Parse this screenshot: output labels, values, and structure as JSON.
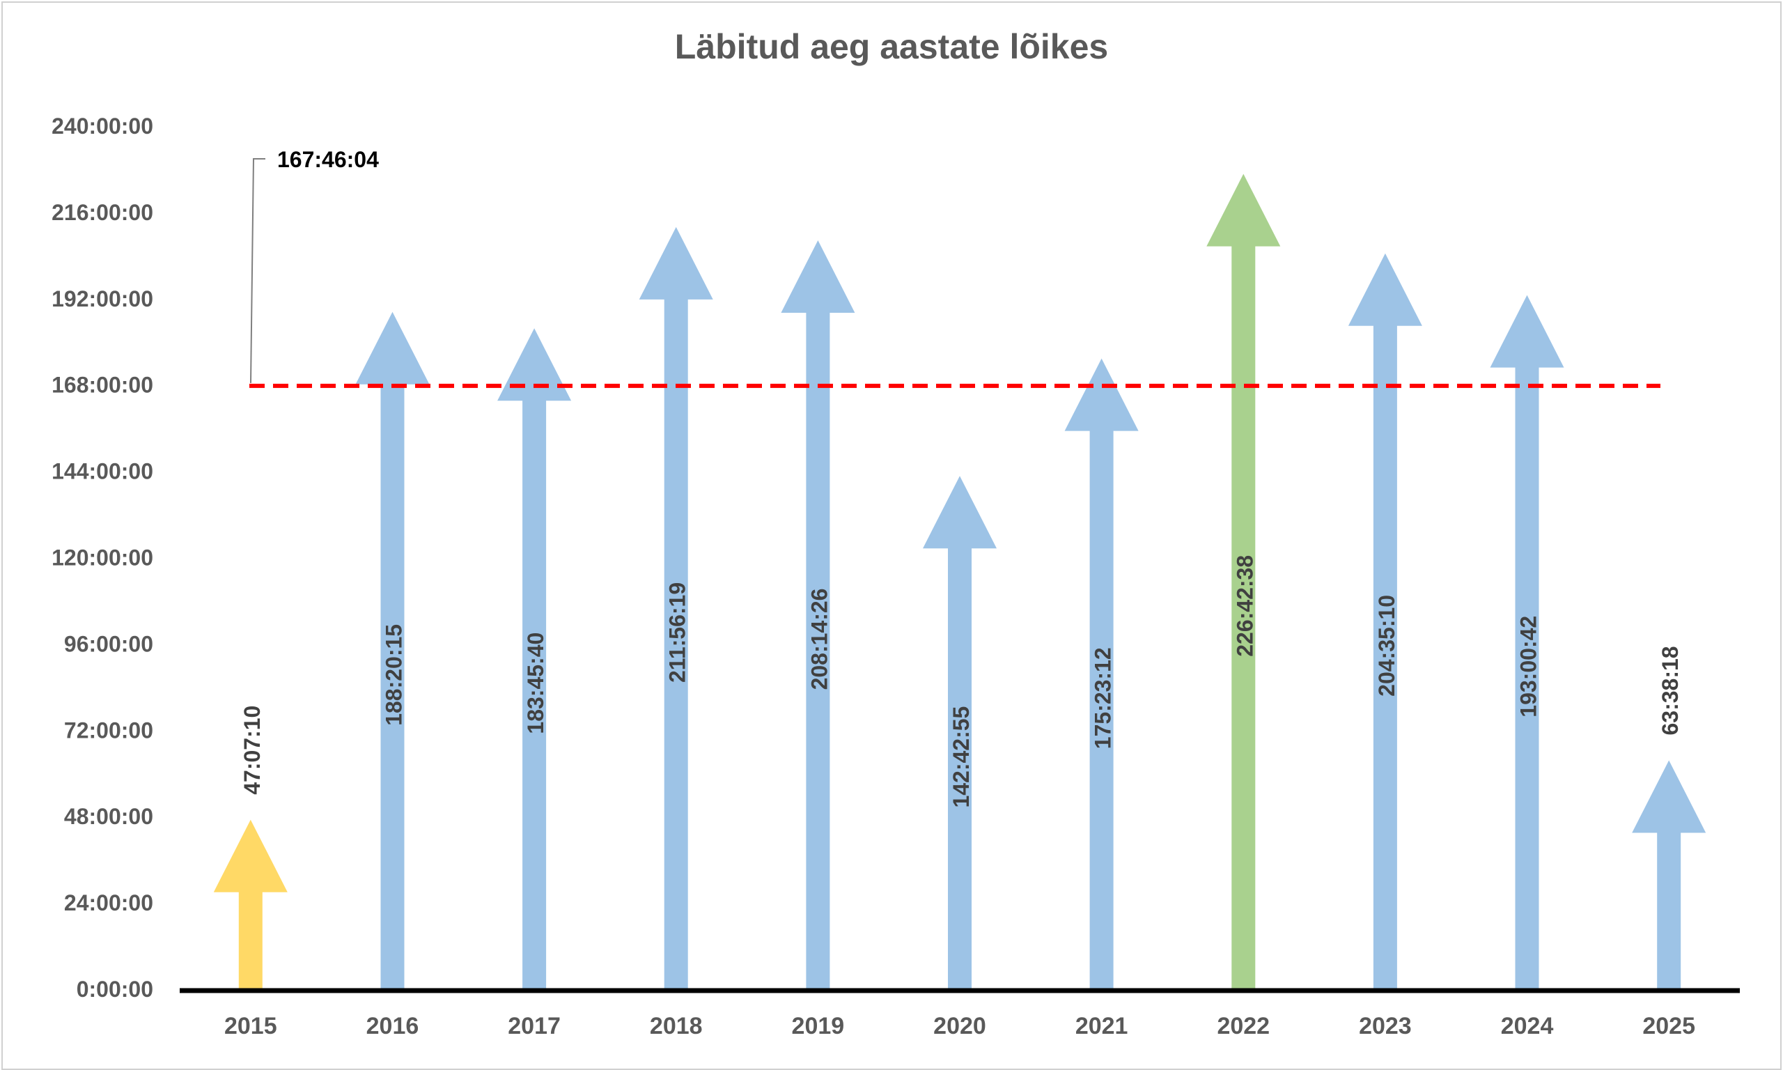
{
  "chart_data": {
    "type": "bar",
    "title": "Läbitud aeg aastate lõikes",
    "xlabel": "",
    "ylabel": "",
    "y_unit": "hours",
    "ylim": [
      0,
      240
    ],
    "y_ticks": [
      0,
      24,
      48,
      72,
      96,
      120,
      144,
      168,
      192,
      216,
      240
    ],
    "y_tick_labels": [
      "0:00:00",
      "24:00:00",
      "48:00:00",
      "72:00:00",
      "96:00:00",
      "120:00:00",
      "144:00:00",
      "168:00:00",
      "192:00:00",
      "216:00:00",
      "240:00:00"
    ],
    "categories": [
      "2015",
      "2016",
      "2017",
      "2018",
      "2019",
      "2020",
      "2021",
      "2022",
      "2023",
      "2024",
      "2025"
    ],
    "values": [
      47.1194,
      188.3375,
      183.7611,
      211.9386,
      208.2406,
      142.7153,
      175.3867,
      226.7106,
      204.5861,
      193.0117,
      63.6383
    ],
    "value_labels": [
      "47:07:10",
      "188:20:15",
      "183:45:40",
      "211:56:19",
      "208:14:26",
      "142:42:55",
      "175:23:12",
      "226:42:38",
      "204:35:10",
      "193:00:42",
      "63:38:18"
    ],
    "colors": [
      "#ffd966",
      "#9dc3e6",
      "#9dc3e6",
      "#9dc3e6",
      "#9dc3e6",
      "#9dc3e6",
      "#9dc3e6",
      "#a9d18e",
      "#9dc3e6",
      "#9dc3e6",
      "#9dc3e6"
    ],
    "mark_shape": "arrow",
    "reference_line": {
      "value": 167.7678,
      "label": "167:46:04",
      "color": "#ff0000",
      "style": "dashed"
    },
    "grid": false,
    "legend": "none"
  }
}
